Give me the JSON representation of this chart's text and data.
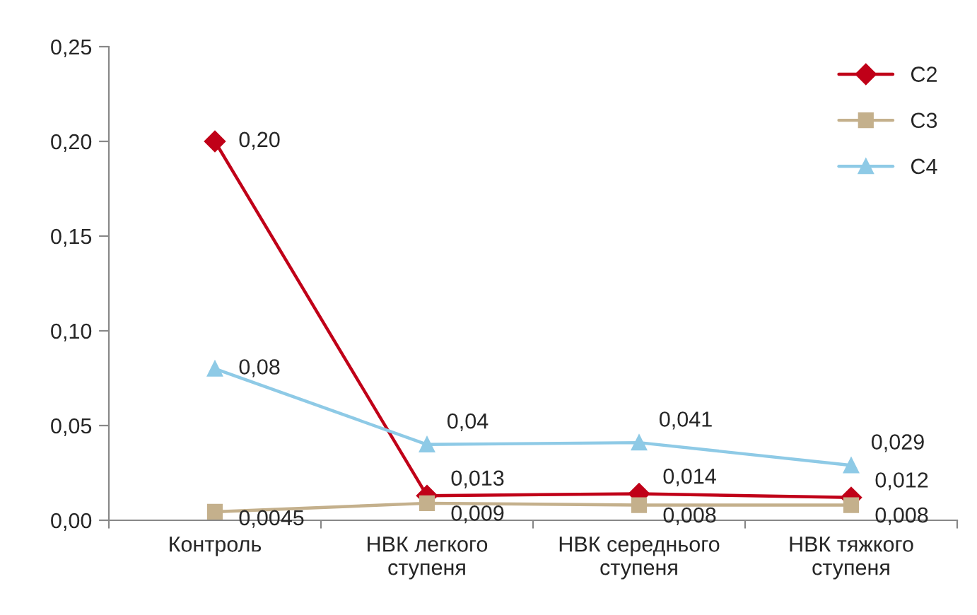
{
  "chart_data": {
    "type": "line",
    "categories": [
      "Контроль",
      "НВК легкого\nступеня",
      "НВК середнього\nступеня",
      "НВК тяжкого\nступеня"
    ],
    "series": [
      {
        "name": "C2",
        "color": "#c00018",
        "marker": "diamond",
        "values": [
          0.2,
          0.013,
          0.014,
          0.012
        ],
        "value_labels": [
          "0,20",
          "0,013",
          "0,014",
          "0,012"
        ]
      },
      {
        "name": "C3",
        "color": "#c4b08c",
        "marker": "square",
        "values": [
          0.0045,
          0.009,
          0.008,
          0.008
        ],
        "value_labels": [
          "0,0045",
          "0,009",
          "0,008",
          "0,008"
        ]
      },
      {
        "name": "C4",
        "color": "#8ecae6",
        "marker": "triangle",
        "values": [
          0.08,
          0.04,
          0.041,
          0.029
        ],
        "value_labels": [
          "0,08",
          "0,04",
          "0,041",
          "0,029"
        ]
      }
    ],
    "ylim": [
      0,
      0.25
    ],
    "yticks": [
      {
        "value": 0,
        "label": "0,00"
      },
      {
        "value": 0.05,
        "label": "0,05"
      },
      {
        "value": 0.1,
        "label": "0,10"
      },
      {
        "value": 0.15,
        "label": "0,15"
      },
      {
        "value": 0.2,
        "label": "0,20"
      },
      {
        "value": 0.25,
        "label": "0,25"
      }
    ],
    "legend": "top right",
    "grid": false,
    "line_style": "solid"
  }
}
